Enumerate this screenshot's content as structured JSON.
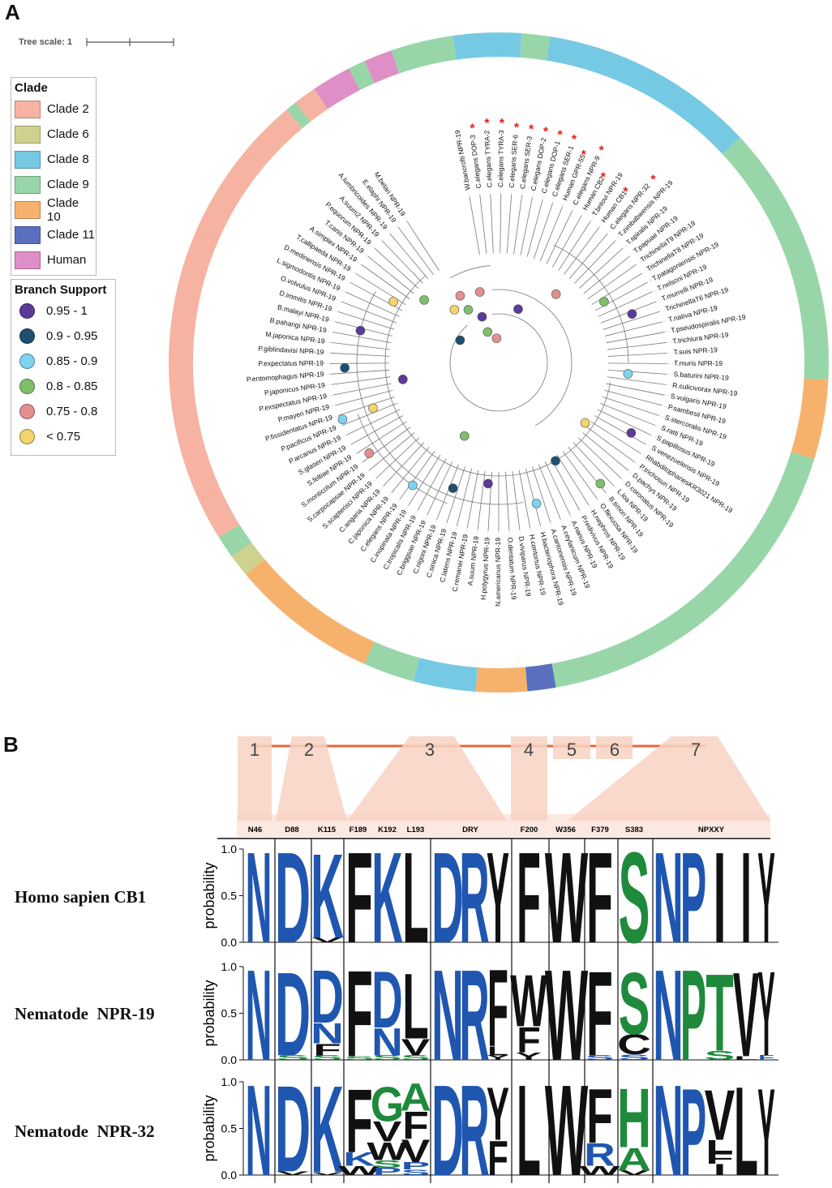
{
  "panel_labels": {
    "a": "A",
    "b": "B"
  },
  "tree": {
    "scale_label": "Tree scale: 1",
    "clade_legend": {
      "title": "Clade",
      "items": [
        {
          "label": "Clade 2",
          "color": "#f6b3a2"
        },
        {
          "label": "Clade 6",
          "color": "#cfd18f"
        },
        {
          "label": "Clade 8",
          "color": "#76c9e3"
        },
        {
          "label": "Clade 9",
          "color": "#98d6a9"
        },
        {
          "label": "Clade 10",
          "color": "#f6b26d"
        },
        {
          "label": "Clade 11",
          "color": "#5a70bf"
        },
        {
          "label": "Human",
          "color": "#de8fc5"
        }
      ]
    },
    "support_legend": {
      "title": "Branch Support",
      "items": [
        {
          "label": "0.95 - 1",
          "color": "#5b3a99"
        },
        {
          "label": "0.9 - 0.95",
          "color": "#1e4f72"
        },
        {
          "label": "0.85 - 0.9",
          "color": "#7fd3ee"
        },
        {
          "label": "0.8 - 0.85",
          "color": "#7fbf6c"
        },
        {
          "label": "0.75 - 0.8",
          "color": "#e38f8f"
        },
        {
          "label": "< 0.75",
          "color": "#f3d36b"
        }
      ]
    },
    "marked_leaves": [
      "C.elegans DOP-3",
      "C.elegans TYRA-2",
      "C.elegans TYRA-3",
      "C.elegans SER-6",
      "C.elegans SER-3",
      "C.elegans DOP-2",
      "C.elegans DOP-1",
      "C.elegans SER-1",
      "Human GPR-55",
      "C.elegans NPR-9",
      "Human CB2",
      "Human CB1",
      "C.elegans NPR-32"
    ],
    "leaves": [
      "W.bancrofti NPR-19",
      "C.elegans DOP-3",
      "C.elegans TYRA-2",
      "C.elegans TYRA-3",
      "C.elegans SER-6",
      "C.elegans SER-3",
      "C.elegans DOP-2",
      "C.elegans DOP-1",
      "C.elegans SER-1",
      "Human GPR-55",
      "C.elegans NPR-9",
      "Human CB2",
      "T.britovi NPR-19",
      "Human CB1",
      "C.elegans NPR-32",
      "T.zimbabwensis NPR-19",
      "T.spiralis NPR-19",
      "T.papuae NPR-19",
      "TrichinellaT9 NPR-19",
      "TrichinellaT8 NPR-19",
      "T.patagoniensis NPR-19",
      "T.nelsoni NPR-19",
      "T.murrelli NPR-19",
      "TrichinellaT6 NPR-19",
      "T.nativa NPR-19",
      "T.pseudospiralis NPR-19",
      "T.trichiura NPR-19",
      "T.suis NPR-19",
      "T.muris NPR-19",
      "S.baturini NPR-19",
      "R.culicivorax NPR-19",
      "S.vulgaris NPR-19",
      "P.sambesii NPR-19",
      "S.stercoralis NPR-19",
      "S.ratti NPR-19",
      "S.papillosus NPR-19",
      "S.venezuelensis NPR-19",
      "RhabditophanesKR3021 NPR-19",
      "P.trichosuri NPR-19",
      "D.pachys NPR-19",
      "D.coronatus NPR-19",
      "L.loa NPR-19",
      "B.timori NPR-19",
      "O.flexuosa NPR-19",
      "H.nephros NPR-19",
      "P.redivivus NPR-19",
      "A.nanus NPR-19",
      "A.ceylanicum NPR-19",
      "A.cantonensis NPR-19",
      "H.bacteriophora NPR-19",
      "H.contortus NPR-19",
      "D.viviparus NPR-19",
      "O.dentatum NPR-19",
      "N.americanus NPR-19",
      "H.polygyrus NPR-19",
      "A.suum NPR-19",
      "C.remanei NPR-19",
      "C.latens NPR-19",
      "C.sinica NPR-19",
      "C.nigoni NPR-19",
      "C.briggsae NPR-19",
      "C.tropicalis NPR-19",
      "C.inopinata NPR-19",
      "C.elegans NPR-19",
      "C.japonica NPR-19",
      "C.angaria NPR-19",
      "S.scapterisci NPR-19",
      "S.carpocapsae NPR-19",
      "S.monticolum NPR-19",
      "S.feltiae NPR-19",
      "S.glaseri NPR-19",
      "P.arcanus NPR-19",
      "P.pacificus NPR-19",
      "P.fissidentatus NPR-19",
      "P.mayeri NPR-19",
      "P.exspectatus NPR-19",
      "P.japonicus NPR-19",
      "P.entomophagus NPR-19",
      "P.expectatus NPR-19",
      "P.giblindavisi NPR-19",
      "M.japonica NPR-19",
      "B.pahangi NPR-19",
      "B.malayi NPR-19",
      "D.immitis NPR-19",
      "O.volvulus NPR-19",
      "L.sigmodontis NPR-19",
      "D.medinensis NPR-19",
      "T.callipaeda NPR-19",
      "A.simplex NPR-19",
      "T.canis NPR-19",
      "P.equorum NPR-19",
      "A.suum2 NPR-19",
      "A.lumbricoides NPR-19",
      "E.elaphi NPR-19",
      "M.belari NPR-19"
    ],
    "ring_segments": [
      {
        "clade": "Clade 8",
        "color": "#76c9e3"
      },
      {
        "clade": "Clade 9",
        "color": "#98d6a9"
      },
      {
        "clade": "Clade 8",
        "color": "#76c9e3"
      },
      {
        "clade": "Clade 9",
        "color": "#98d6a9"
      },
      {
        "clade": "Clade 10",
        "color": "#f6b26d"
      },
      {
        "clade": "Clade 9",
        "color": "#98d6a9"
      },
      {
        "clade": "Clade 11",
        "color": "#5a70bf"
      },
      {
        "clade": "Clade 10",
        "color": "#f6b26d"
      },
      {
        "clade": "Clade 8",
        "color": "#76c9e3"
      },
      {
        "clade": "Clade 9",
        "color": "#98d6a9"
      },
      {
        "clade": "Clade 10",
        "color": "#f6b26d"
      },
      {
        "clade": "Clade 6",
        "color": "#cfd18f"
      },
      {
        "clade": "Clade 9",
        "color": "#98d6a9"
      },
      {
        "clade": "Clade 2",
        "color": "#f6b3a2"
      },
      {
        "clade": "Clade 9",
        "color": "#98d6a9"
      },
      {
        "clade": "Clade 2",
        "color": "#f6b3a2"
      },
      {
        "clade": "Human",
        "color": "#de8fc5"
      },
      {
        "clade": "Clade 9",
        "color": "#98d6a9"
      },
      {
        "clade": "Human",
        "color": "#de8fc5"
      },
      {
        "clade": "Clade 9",
        "color": "#98d6a9"
      }
    ]
  },
  "logo": {
    "tm_numbers": [
      "1",
      "2",
      "3",
      "4",
      "5",
      "6",
      "7"
    ],
    "positions": [
      "N46",
      "D88",
      "K115",
      "F189",
      "K192",
      "L193",
      "DRY",
      "F200",
      "W356",
      "F379",
      "S383",
      "NPXXY"
    ],
    "y_axis_label": "probability",
    "y_ticks": [
      "1.0",
      "0.5",
      "0.0"
    ],
    "colors": {
      "blue": "#1f56b0",
      "green": "#1f8a3c",
      "black": "#111111",
      "band": "#f7d2c2",
      "line": "#e8673a"
    },
    "rows": [
      {
        "name": "Homo sapien CB1",
        "columns": [
          [
            [
              "N",
              "blue",
              1.0
            ]
          ],
          [
            [
              "D",
              "blue",
              1.0
            ]
          ],
          [
            [
              "K",
              "blue",
              0.93
            ],
            [
              "V",
              "black",
              0.05
            ]
          ],
          [
            [
              "F",
              "black",
              1.0
            ]
          ],
          [
            [
              "K",
              "blue",
              1.0
            ]
          ],
          [
            [
              "L",
              "black",
              1.0
            ]
          ],
          [
            [
              "D",
              "blue",
              1.0
            ]
          ],
          [
            [
              "R",
              "blue",
              1.0
            ]
          ],
          [
            [
              "Y",
              "black",
              1.0
            ]
          ],
          [
            [
              "F",
              "black",
              1.0
            ]
          ],
          [
            [
              "W",
              "black",
              1.0
            ]
          ],
          [
            [
              "F",
              "black",
              1.0
            ]
          ],
          [
            [
              "S",
              "green",
              1.0
            ]
          ],
          [
            [
              "N",
              "blue",
              1.0
            ]
          ],
          [
            [
              "P",
              "blue",
              1.0
            ]
          ],
          [
            [
              "I",
              "black",
              1.0
            ]
          ],
          [
            [
              "I",
              "black",
              1.0
            ]
          ],
          [
            [
              "Y",
              "black",
              1.0
            ]
          ]
        ]
      },
      {
        "name": "Nematode  NPR-19",
        "columns": [
          [
            [
              "N",
              "blue",
              1.0
            ]
          ],
          [
            [
              "D",
              "blue",
              0.92
            ],
            [
              "S",
              "green",
              0.05
            ]
          ],
          [
            [
              "D",
              "blue",
              0.58
            ],
            [
              "N",
              "blue",
              0.22
            ],
            [
              "F",
              "black",
              0.13
            ],
            [
              "S",
              "green",
              0.05
            ]
          ],
          [
            [
              "F",
              "black",
              0.95
            ],
            [
              "S",
              "green",
              0.04
            ]
          ],
          [
            [
              "D",
              "blue",
              0.62
            ],
            [
              "N",
              "blue",
              0.3
            ],
            [
              "S",
              "green",
              0.05
            ]
          ],
          [
            [
              "L",
              "black",
              0.72
            ],
            [
              "V",
              "black",
              0.18
            ],
            [
              "S",
              "green",
              0.05
            ]
          ],
          [
            [
              "N",
              "blue",
              1.0
            ]
          ],
          [
            [
              "R",
              "blue",
              1.0
            ]
          ],
          [
            [
              "F",
              "black",
              0.85
            ],
            [
              "L",
              "black",
              0.1
            ],
            [
              "Y",
              "black",
              0.05
            ]
          ],
          [
            [
              "W",
              "black",
              0.57
            ],
            [
              "F",
              "black",
              0.28
            ],
            [
              "Y",
              "black",
              0.08
            ]
          ],
          [
            [
              "W",
              "black",
              1.0
            ]
          ],
          [
            [
              "F",
              "black",
              0.93
            ],
            [
              "S",
              "blue",
              0.05
            ]
          ],
          [
            [
              "S",
              "green",
              0.68
            ],
            [
              "C",
              "black",
              0.22
            ],
            [
              "S",
              "blue",
              0.06
            ]
          ],
          [
            [
              "N",
              "blue",
              1.0
            ]
          ],
          [
            [
              "P",
              "green",
              1.0
            ]
          ],
          [
            [
              "T",
              "green",
              0.85
            ],
            [
              "S",
              "green",
              0.1
            ]
          ],
          [
            [
              "V",
              "black",
              0.93
            ],
            [
              "L",
              "black",
              0.04
            ]
          ],
          [
            [
              "Y",
              "black",
              0.93
            ],
            [
              "F",
              "blue",
              0.05
            ]
          ]
        ]
      },
      {
        "name": "Nematode  NPR-32",
        "columns": [
          [
            [
              "N",
              "blue",
              1.0
            ]
          ],
          [
            [
              "D",
              "blue",
              0.95
            ],
            [
              "V",
              "black",
              0.04
            ]
          ],
          [
            [
              "K",
              "blue",
              0.96
            ],
            [
              "V",
              "black",
              0.03
            ]
          ],
          [
            [
              "F",
              "black",
              0.7
            ],
            [
              "K",
              "blue",
              0.15
            ],
            [
              "W",
              "black",
              0.1
            ]
          ],
          [
            [
              "G",
              "green",
              0.38
            ],
            [
              "V",
              "black",
              0.22
            ],
            [
              "W",
              "black",
              0.2
            ],
            [
              "P",
              "blue",
              0.08
            ],
            [
              "S",
              "green",
              0.08
            ]
          ],
          [
            [
              "F",
              "black",
              0.3
            ],
            [
              "A",
              "green",
              0.3
            ],
            [
              "V",
              "black",
              0.25
            ],
            [
              "P",
              "blue",
              0.08
            ],
            [
              "S",
              "blue",
              0.06
            ]
          ],
          [
            [
              "D",
              "blue",
              1.0
            ]
          ],
          [
            [
              "R",
              "blue",
              1.0
            ]
          ],
          [
            [
              "Y",
              "black",
              0.58
            ],
            [
              "F",
              "black",
              0.38
            ]
          ],
          [
            [
              "L",
              "black",
              1.0
            ]
          ],
          [
            [
              "W",
              "black",
              1.0
            ]
          ],
          [
            [
              "F",
              "black",
              0.6
            ],
            [
              "R",
              "blue",
              0.25
            ],
            [
              "W",
              "black",
              0.1
            ]
          ],
          [
            [
              "H",
              "green",
              0.65
            ],
            [
              "A",
              "green",
              0.25
            ],
            [
              "V",
              "black",
              0.05
            ]
          ],
          [
            [
              "N",
              "blue",
              1.0
            ]
          ],
          [
            [
              "P",
              "blue",
              0.96
            ]
          ],
          [
            [
              "V",
              "black",
              0.55
            ],
            [
              "I",
              "black",
              0.12
            ],
            [
              "F",
              "black",
              0.12
            ],
            [
              "L",
              "black",
              0.14
            ]
          ],
          [
            [
              "L",
              "black",
              0.98
            ]
          ],
          [
            [
              "Y",
              "black",
              0.96
            ]
          ]
        ]
      }
    ]
  }
}
